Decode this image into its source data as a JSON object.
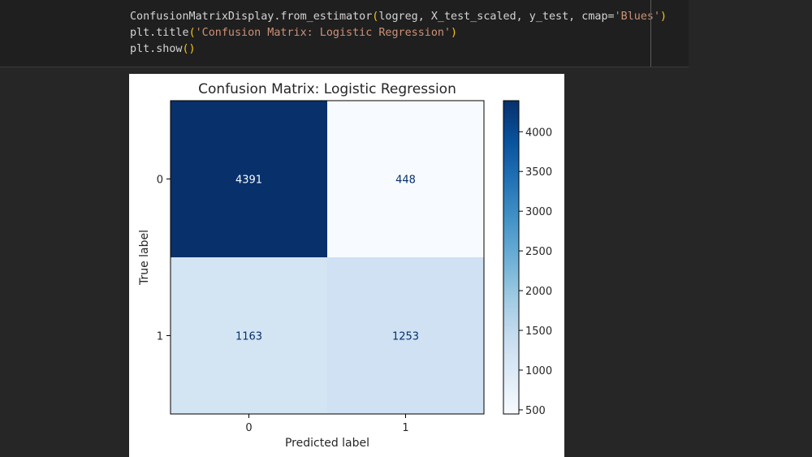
{
  "code": {
    "line1": {
      "prefix": "ConfusionMatrixDisplay.from_estimator",
      "open": "(",
      "args": "logreg, X_test_scaled, y_test, cmap=",
      "string": "'Blues'",
      "close": ")"
    },
    "line2": {
      "prefix": "plt.title",
      "open": "(",
      "string": "'Confusion Matrix: Logistic Regression'",
      "close": ")"
    },
    "line3": {
      "prefix": "plt.show",
      "parens": "()"
    }
  },
  "chart_data": {
    "type": "heatmap",
    "title": "Confusion Matrix: Logistic Regression",
    "xlabel": "Predicted label",
    "ylabel": "True label",
    "x_categories": [
      "0",
      "1"
    ],
    "y_categories": [
      "0",
      "1"
    ],
    "matrix": [
      [
        4391,
        448
      ],
      [
        1163,
        1253
      ]
    ],
    "colormap": "Blues",
    "colorbar": {
      "min": 448,
      "max": 4391,
      "ticks": [
        500,
        1000,
        1500,
        2000,
        2500,
        3000,
        3500,
        4000
      ]
    }
  }
}
